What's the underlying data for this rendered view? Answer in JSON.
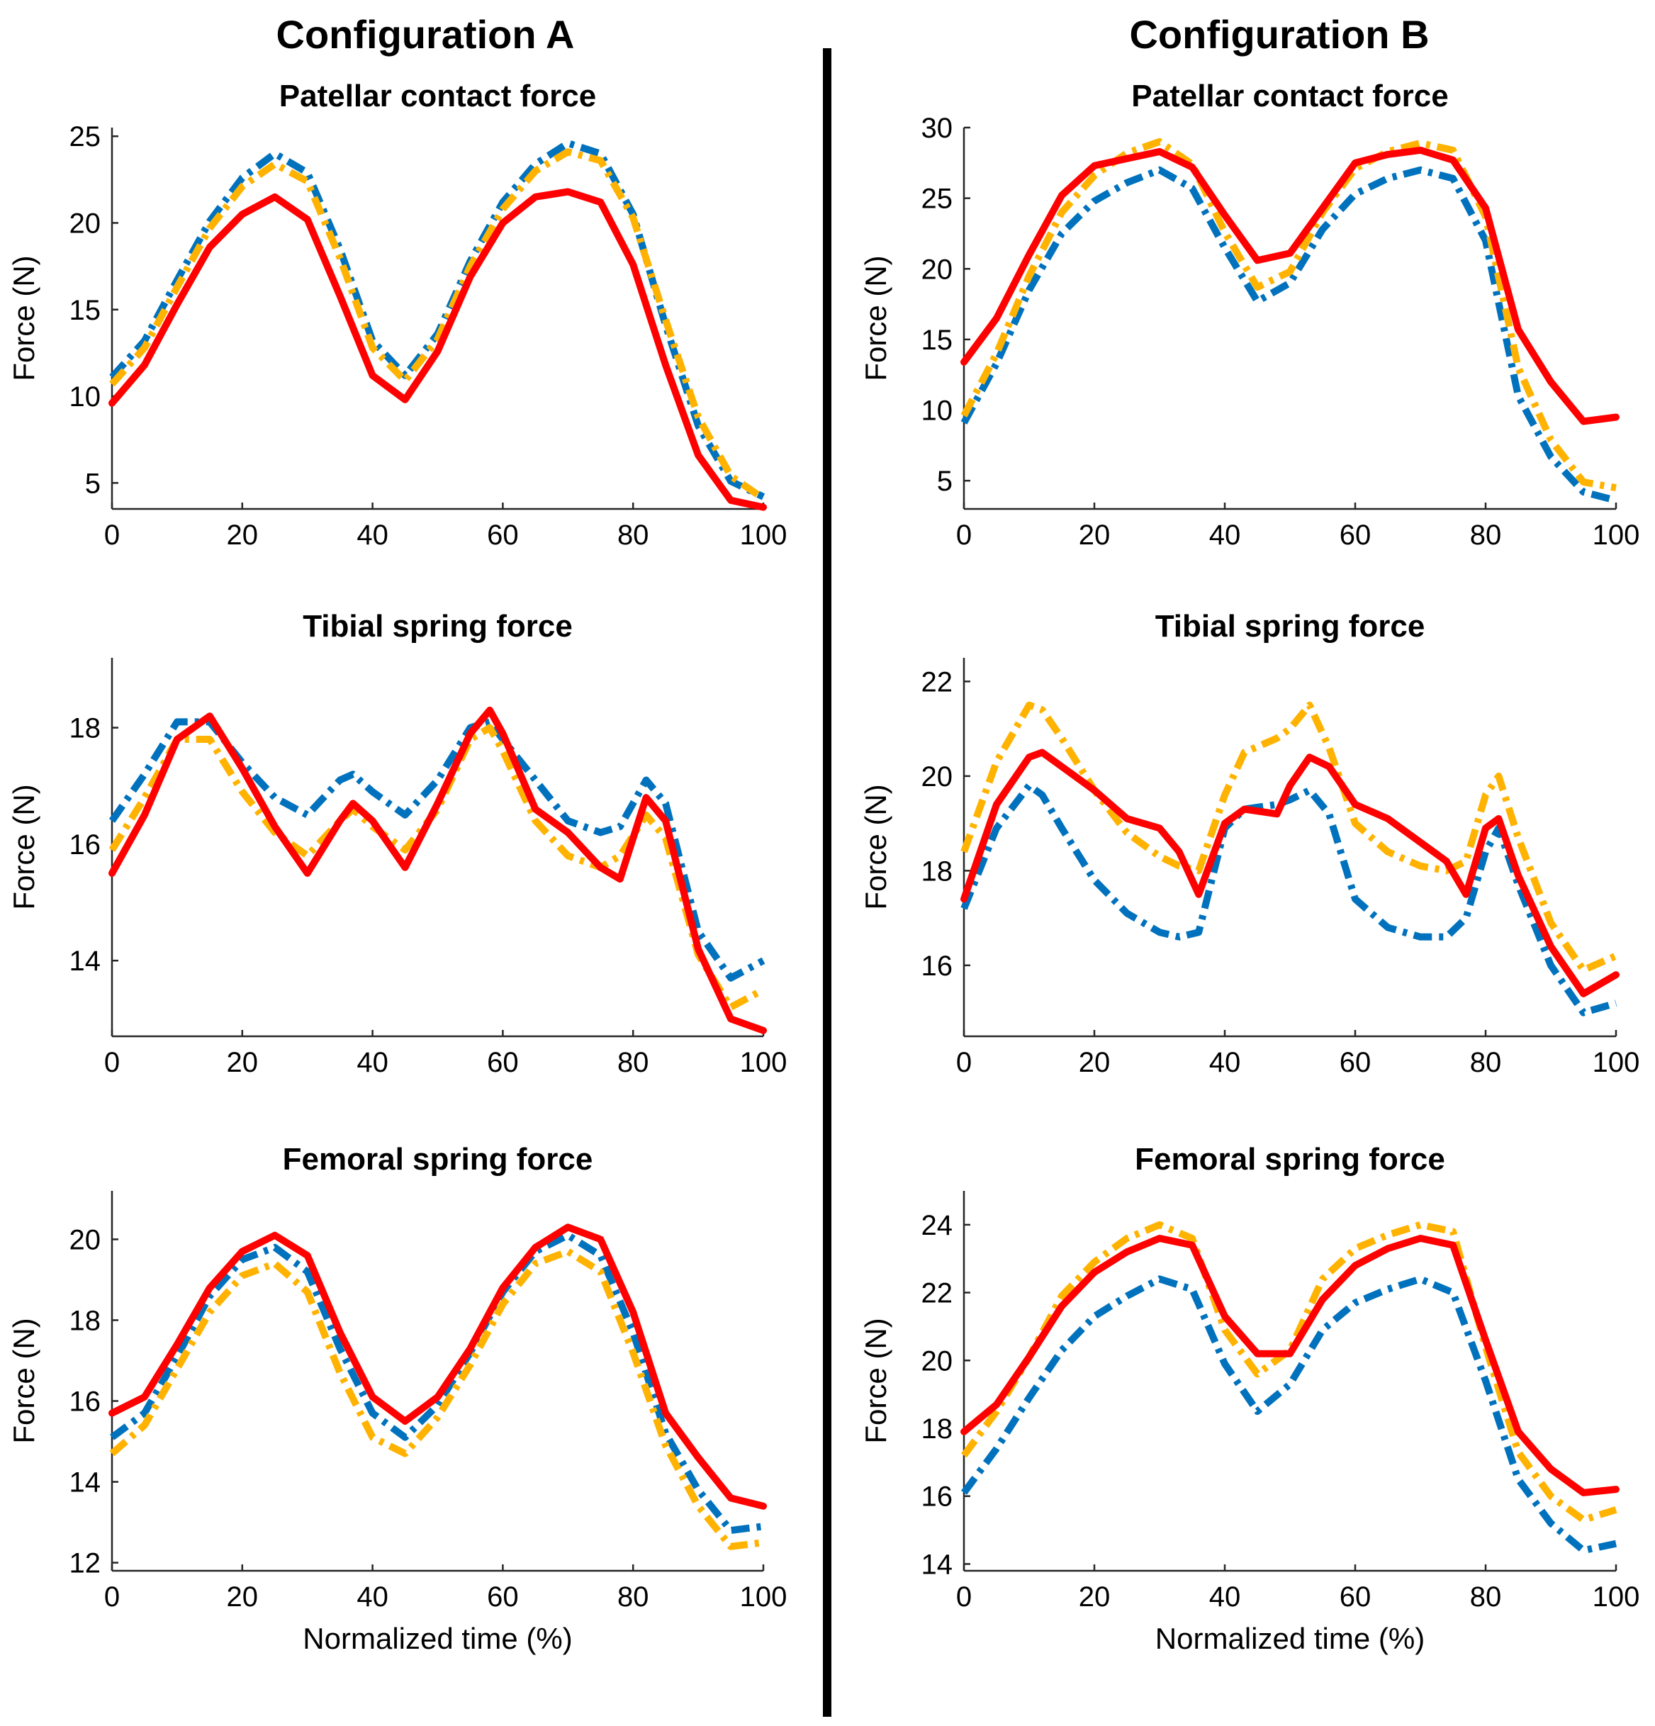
{
  "figure": {
    "column_titles": [
      "Configuration A",
      "Configuration B"
    ],
    "series_colors": {
      "red": "#ff0000",
      "blue": "#0072bd",
      "yellow": "#ffb300"
    }
  },
  "chart_data": [
    {
      "type": "line",
      "column": "Configuration A",
      "title": "Patellar contact force",
      "xlabel": "",
      "ylabel": "Force (N)",
      "xlim": [
        0,
        100
      ],
      "ylim": [
        3.5,
        25.5
      ],
      "xticks": [
        0,
        20,
        40,
        60,
        80,
        100
      ],
      "yticks": [
        5,
        10,
        15,
        20,
        25
      ],
      "x": [
        0,
        5,
        10,
        15,
        20,
        25,
        30,
        35,
        40,
        45,
        50,
        55,
        60,
        65,
        70,
        75,
        80,
        85,
        90,
        95,
        100
      ],
      "series": [
        {
          "name": "red",
          "style": "solid",
          "values": [
            9.6,
            11.8,
            15.3,
            18.6,
            20.5,
            21.5,
            20.2,
            15.8,
            11.2,
            9.8,
            12.6,
            16.9,
            20.0,
            21.5,
            21.8,
            21.2,
            17.6,
            11.8,
            6.6,
            4.0,
            3.6
          ]
        },
        {
          "name": "blue",
          "style": "dash-dot",
          "values": [
            11.1,
            13.2,
            16.7,
            20.1,
            22.6,
            24.0,
            22.9,
            18.5,
            13.2,
            11.2,
            13.6,
            17.8,
            21.2,
            23.4,
            24.6,
            24.0,
            20.5,
            14.1,
            8.3,
            5.1,
            4.2
          ]
        },
        {
          "name": "yellow",
          "style": "dash-dot",
          "values": [
            10.7,
            12.8,
            16.3,
            19.7,
            22.1,
            23.4,
            22.4,
            18.0,
            12.8,
            10.9,
            13.3,
            17.5,
            20.8,
            23.0,
            24.1,
            23.6,
            20.3,
            14.4,
            8.8,
            5.4,
            4.1
          ]
        }
      ]
    },
    {
      "type": "line",
      "column": "Configuration B",
      "title": "Patellar contact force",
      "xlabel": "",
      "ylabel": "Force (N)",
      "xlim": [
        0,
        100
      ],
      "ylim": [
        3,
        30
      ],
      "xticks": [
        0,
        20,
        40,
        60,
        80,
        100
      ],
      "yticks": [
        5,
        10,
        15,
        20,
        25,
        30
      ],
      "x": [
        0,
        5,
        10,
        15,
        20,
        25,
        30,
        35,
        40,
        45,
        50,
        55,
        60,
        65,
        70,
        75,
        80,
        85,
        90,
        95,
        100
      ],
      "series": [
        {
          "name": "red",
          "style": "solid",
          "values": [
            13.4,
            16.5,
            21.0,
            25.2,
            27.3,
            27.8,
            28.3,
            27.2,
            23.8,
            20.6,
            21.1,
            24.3,
            27.5,
            28.1,
            28.4,
            27.7,
            24.3,
            15.7,
            12.0,
            9.2,
            9.5
          ]
        },
        {
          "name": "blue",
          "style": "dash-dot",
          "values": [
            9.1,
            13.3,
            18.5,
            22.5,
            24.8,
            26.1,
            27.0,
            25.7,
            21.5,
            17.7,
            19.0,
            22.8,
            25.3,
            26.4,
            27.0,
            26.4,
            22.0,
            11.0,
            6.7,
            4.2,
            3.6
          ]
        },
        {
          "name": "yellow",
          "style": "dash-dot",
          "values": [
            9.6,
            14.0,
            19.5,
            24.0,
            26.6,
            28.2,
            29.0,
            27.4,
            22.6,
            18.7,
            19.8,
            24.0,
            27.1,
            28.3,
            28.9,
            28.4,
            23.7,
            13.0,
            7.9,
            4.9,
            4.5
          ]
        }
      ]
    },
    {
      "type": "line",
      "column": "Configuration A",
      "title": "Tibial spring force",
      "xlabel": "",
      "ylabel": "Force (N)",
      "xlim": [
        0,
        100
      ],
      "ylim": [
        12.7,
        19.2
      ],
      "xticks": [
        0,
        20,
        40,
        60,
        80,
        100
      ],
      "yticks": [
        14,
        16,
        18
      ],
      "x": [
        0,
        5,
        10,
        15,
        20,
        25,
        30,
        35,
        37,
        40,
        45,
        50,
        55,
        58,
        60,
        65,
        70,
        75,
        78,
        82,
        85,
        90,
        95,
        100
      ],
      "series": [
        {
          "name": "red",
          "style": "solid",
          "values": [
            15.5,
            16.5,
            17.8,
            18.2,
            17.3,
            16.3,
            15.5,
            16.4,
            16.7,
            16.4,
            15.6,
            16.7,
            17.9,
            18.3,
            17.9,
            16.6,
            16.2,
            15.6,
            15.4,
            16.8,
            16.4,
            14.2,
            13.0,
            12.8
          ]
        },
        {
          "name": "blue",
          "style": "dash-dot",
          "values": [
            16.4,
            17.2,
            18.1,
            18.1,
            17.4,
            16.8,
            16.5,
            17.1,
            17.2,
            16.9,
            16.5,
            17.1,
            18.0,
            18.1,
            17.8,
            17.1,
            16.4,
            16.2,
            16.3,
            17.1,
            16.7,
            14.5,
            13.7,
            14.0
          ]
        },
        {
          "name": "yellow",
          "style": "dash-dot",
          "values": [
            15.9,
            16.8,
            17.8,
            17.8,
            16.9,
            16.2,
            15.8,
            16.4,
            16.6,
            16.3,
            15.9,
            16.6,
            17.8,
            18.0,
            17.6,
            16.4,
            15.8,
            15.6,
            15.8,
            16.5,
            16.1,
            14.1,
            13.2,
            13.5
          ]
        }
      ]
    },
    {
      "type": "line",
      "column": "Configuration B",
      "title": "Tibial spring force",
      "xlabel": "",
      "ylabel": "Force (N)",
      "xlim": [
        0,
        100
      ],
      "ylim": [
        14.5,
        22.5
      ],
      "xticks": [
        0,
        20,
        40,
        60,
        80,
        100
      ],
      "yticks": [
        16,
        18,
        20,
        22
      ],
      "x": [
        0,
        5,
        10,
        12,
        15,
        20,
        25,
        30,
        33,
        36,
        40,
        43,
        48,
        50,
        53,
        56,
        60,
        65,
        70,
        74,
        77,
        80,
        82,
        85,
        90,
        95,
        100
      ],
      "series": [
        {
          "name": "red",
          "style": "solid",
          "values": [
            17.4,
            19.4,
            20.4,
            20.5,
            20.2,
            19.7,
            19.1,
            18.9,
            18.4,
            17.5,
            19.0,
            19.3,
            19.2,
            19.8,
            20.4,
            20.2,
            19.4,
            19.1,
            18.6,
            18.2,
            17.5,
            18.9,
            19.1,
            17.9,
            16.4,
            15.4,
            15.8
          ]
        },
        {
          "name": "blue",
          "style": "dash-dot",
          "values": [
            17.2,
            18.9,
            19.8,
            19.6,
            18.9,
            17.8,
            17.1,
            16.7,
            16.6,
            16.7,
            18.9,
            19.3,
            19.4,
            19.5,
            19.7,
            19.2,
            17.4,
            16.8,
            16.6,
            16.6,
            17.0,
            18.4,
            18.9,
            17.7,
            16.0,
            15.0,
            15.2
          ]
        },
        {
          "name": "yellow",
          "style": "dash-dot",
          "values": [
            18.4,
            20.3,
            21.5,
            21.4,
            20.8,
            19.7,
            18.8,
            18.3,
            18.1,
            18.0,
            19.6,
            20.5,
            20.8,
            21.0,
            21.5,
            20.6,
            19.0,
            18.4,
            18.1,
            18.0,
            18.2,
            19.6,
            20.0,
            18.7,
            16.9,
            15.9,
            16.2
          ]
        }
      ]
    },
    {
      "type": "line",
      "column": "Configuration A",
      "title": "Femoral spring force",
      "xlabel": "Normalized time (%)",
      "ylabel": "Force (N)",
      "xlim": [
        0,
        100
      ],
      "ylim": [
        11.8,
        21.2
      ],
      "xticks": [
        0,
        20,
        40,
        60,
        80,
        100
      ],
      "yticks": [
        12,
        14,
        16,
        18,
        20
      ],
      "x": [
        0,
        5,
        10,
        15,
        20,
        25,
        30,
        35,
        40,
        45,
        50,
        55,
        60,
        65,
        70,
        75,
        80,
        85,
        90,
        95,
        100
      ],
      "series": [
        {
          "name": "red",
          "style": "solid",
          "values": [
            15.7,
            16.1,
            17.4,
            18.8,
            19.7,
            20.1,
            19.6,
            17.7,
            16.1,
            15.5,
            16.1,
            17.3,
            18.8,
            19.8,
            20.3,
            20.0,
            18.2,
            15.7,
            14.6,
            13.6,
            13.4
          ]
        },
        {
          "name": "blue",
          "style": "dash-dot",
          "values": [
            15.1,
            15.7,
            17.1,
            18.6,
            19.5,
            19.8,
            19.2,
            17.3,
            15.7,
            15.1,
            15.9,
            17.2,
            18.7,
            19.7,
            20.1,
            19.6,
            17.7,
            15.2,
            13.8,
            12.8,
            12.9
          ]
        },
        {
          "name": "yellow",
          "style": "dash-dot",
          "values": [
            14.7,
            15.4,
            16.8,
            18.2,
            19.1,
            19.4,
            18.7,
            16.7,
            15.1,
            14.7,
            15.6,
            16.9,
            18.4,
            19.4,
            19.7,
            19.2,
            17.2,
            14.9,
            13.4,
            12.4,
            12.5
          ]
        }
      ]
    },
    {
      "type": "line",
      "column": "Configuration B",
      "title": "Femoral spring force",
      "xlabel": "Normalized time (%)",
      "ylabel": "Force (N)",
      "xlim": [
        0,
        100
      ],
      "ylim": [
        13.8,
        25.0
      ],
      "xticks": [
        0,
        20,
        40,
        60,
        80,
        100
      ],
      "yticks": [
        14,
        16,
        18,
        20,
        22,
        24
      ],
      "x": [
        0,
        5,
        10,
        15,
        20,
        25,
        30,
        35,
        40,
        45,
        50,
        55,
        60,
        65,
        70,
        75,
        80,
        85,
        90,
        95,
        100
      ],
      "series": [
        {
          "name": "red",
          "style": "solid",
          "values": [
            17.9,
            18.7,
            20.1,
            21.6,
            22.6,
            23.2,
            23.6,
            23.4,
            21.3,
            20.2,
            20.2,
            21.8,
            22.8,
            23.3,
            23.6,
            23.4,
            20.6,
            17.9,
            16.8,
            16.1,
            16.2
          ]
        },
        {
          "name": "blue",
          "style": "dash-dot",
          "values": [
            16.1,
            17.4,
            18.9,
            20.3,
            21.3,
            21.9,
            22.4,
            22.1,
            19.9,
            18.5,
            19.3,
            20.9,
            21.7,
            22.1,
            22.4,
            22.0,
            19.4,
            16.5,
            15.2,
            14.4,
            14.6
          ]
        },
        {
          "name": "yellow",
          "style": "dash-dot",
          "values": [
            17.2,
            18.5,
            20.1,
            21.9,
            22.9,
            23.6,
            24.0,
            23.6,
            20.9,
            19.6,
            20.3,
            22.4,
            23.3,
            23.7,
            24.0,
            23.8,
            20.4,
            17.3,
            16.0,
            15.3,
            15.6
          ]
        }
      ]
    }
  ]
}
